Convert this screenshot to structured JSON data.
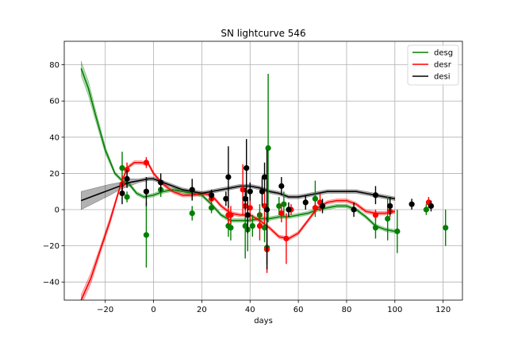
{
  "chart_data": {
    "type": "line",
    "title": "SN lightcurve 546",
    "xlabel": "days",
    "ylabel": "",
    "xlim": [
      -37,
      128
    ],
    "ylim": [
      -50,
      93
    ],
    "x_ticks": [
      -20,
      0,
      20,
      40,
      60,
      80,
      100,
      120
    ],
    "y_ticks": [
      -40,
      -20,
      0,
      20,
      40,
      60,
      80
    ],
    "grid": true,
    "legend_position": "top-right",
    "series": [
      {
        "name": "desg",
        "color": "#008000",
        "model": {
          "x": [
            -30,
            -27,
            -24,
            -20,
            -16,
            -13,
            -10,
            -7,
            -4,
            0,
            4,
            8,
            12,
            16,
            20,
            24,
            28,
            32,
            36,
            40,
            44,
            48,
            52,
            56,
            60,
            64,
            68,
            72,
            76,
            80,
            84,
            88,
            92,
            96,
            100
          ],
          "y": [
            78,
            67,
            52,
            33,
            20,
            16,
            14,
            9,
            7,
            8,
            10,
            11,
            10,
            9,
            8,
            3,
            -3,
            -6,
            -6,
            -6,
            -5,
            -5,
            -4,
            -4,
            -3,
            -2,
            0,
            1,
            2,
            2,
            0,
            -4,
            -9,
            -11,
            -12
          ],
          "band": [
            4,
            4,
            3,
            2,
            1,
            1,
            1,
            1,
            1,
            1,
            1,
            1,
            1,
            1,
            1,
            1,
            1,
            1,
            1,
            1,
            1,
            1,
            1,
            1,
            1,
            1,
            1,
            1,
            1,
            1,
            1,
            1,
            1,
            1,
            1
          ]
        },
        "points": [
          {
            "x": -13,
            "y": 23,
            "err": 9
          },
          {
            "x": -11,
            "y": 7,
            "err": 3
          },
          {
            "x": -3,
            "y": -14,
            "err": 18
          },
          {
            "x": 3,
            "y": 11,
            "err": 4
          },
          {
            "x": 16,
            "y": -2,
            "err": 4
          },
          {
            "x": 24,
            "y": 1,
            "err": 3
          },
          {
            "x": 31,
            "y": -9,
            "err": 6
          },
          {
            "x": 32,
            "y": -10,
            "err": 7
          },
          {
            "x": 38,
            "y": -9,
            "err": 18
          },
          {
            "x": 39,
            "y": -11,
            "err": 12
          },
          {
            "x": 41,
            "y": -9,
            "err": 6
          },
          {
            "x": 44,
            "y": -3,
            "err": 6
          },
          {
            "x": 46,
            "y": -10,
            "err": 8
          },
          {
            "x": 47,
            "y": -21,
            "err": 9
          },
          {
            "x": 47.5,
            "y": 34,
            "err": 41
          },
          {
            "x": 52,
            "y": 2,
            "err": 5
          },
          {
            "x": 54,
            "y": 3,
            "err": 7
          },
          {
            "x": 67,
            "y": 6,
            "err": 10
          },
          {
            "x": 92,
            "y": -10,
            "err": 6
          },
          {
            "x": 97,
            "y": -5,
            "err": 12
          },
          {
            "x": 101,
            "y": -12,
            "err": 12
          },
          {
            "x": 113,
            "y": 0,
            "err": 3
          },
          {
            "x": 121,
            "y": -10,
            "err": 10
          }
        ]
      },
      {
        "name": "desr",
        "color": "#ff0000",
        "model": {
          "x": [
            -30,
            -26,
            -22,
            -18,
            -14,
            -11,
            -8,
            -5,
            -2,
            0,
            4,
            8,
            12,
            16,
            20,
            24,
            28,
            32,
            36,
            40,
            44,
            48,
            52,
            56,
            60,
            64,
            68,
            72,
            76,
            80,
            84,
            88,
            92,
            96,
            100
          ],
          "y": [
            -50,
            -38,
            -22,
            -6,
            12,
            23,
            26,
            26,
            25,
            20,
            14,
            10,
            8,
            8,
            9,
            8,
            2,
            -2,
            -3,
            -3,
            -6,
            -10,
            -15,
            -16,
            -13,
            -6,
            1,
            4,
            5,
            5,
            3,
            -1,
            -2,
            -2,
            -1
          ],
          "band": [
            3,
            3,
            2,
            2,
            1,
            1,
            1,
            1,
            1,
            1,
            1,
            1,
            1,
            1,
            1,
            1,
            1,
            1,
            1,
            1,
            1,
            1,
            1,
            1,
            1,
            1,
            1,
            1,
            1,
            1,
            1,
            1,
            1,
            1,
            1
          ]
        },
        "points": [
          {
            "x": -13,
            "y": 14,
            "err": 5
          },
          {
            "x": -11,
            "y": 22,
            "err": 4
          },
          {
            "x": -3,
            "y": 26,
            "err": 3
          },
          {
            "x": 24,
            "y": 6,
            "err": 3
          },
          {
            "x": 31,
            "y": -3,
            "err": 5
          },
          {
            "x": 32,
            "y": -3,
            "err": 5
          },
          {
            "x": 37,
            "y": 11,
            "err": 14
          },
          {
            "x": 38,
            "y": 2,
            "err": 6
          },
          {
            "x": 40,
            "y": 1,
            "err": 7
          },
          {
            "x": 44,
            "y": -9,
            "err": 8
          },
          {
            "x": 46,
            "y": 2,
            "err": 10
          },
          {
            "x": 47,
            "y": -22,
            "err": 13
          },
          {
            "x": 53,
            "y": -2,
            "err": 5
          },
          {
            "x": 55,
            "y": -16,
            "err": 14
          },
          {
            "x": 57,
            "y": 0,
            "err": 3
          },
          {
            "x": 67,
            "y": 1,
            "err": 3
          },
          {
            "x": 69,
            "y": 4,
            "err": 5
          },
          {
            "x": 92,
            "y": -3,
            "err": 3
          },
          {
            "x": 98,
            "y": -1,
            "err": 3
          },
          {
            "x": 114,
            "y": 4,
            "err": 3
          }
        ]
      },
      {
        "name": "desi",
        "color": "#000000",
        "model": {
          "x": [
            -30,
            -24,
            -18,
            -14,
            -10,
            -6,
            -2,
            0,
            4,
            8,
            12,
            16,
            20,
            24,
            28,
            32,
            36,
            40,
            44,
            48,
            52,
            56,
            60,
            64,
            68,
            72,
            76,
            80,
            84,
            88,
            92,
            96,
            100
          ],
          "y": [
            5,
            8,
            11,
            13,
            15,
            16,
            17,
            17,
            15,
            13,
            11,
            10,
            9,
            10,
            11,
            12,
            13,
            13,
            12,
            10,
            9,
            7,
            7,
            8,
            9,
            10,
            10,
            10,
            10,
            9,
            8,
            7,
            6
          ],
          "band": [
            5,
            4,
            3,
            2,
            2,
            1,
            1,
            1,
            1,
            1,
            1,
            1,
            1,
            1,
            1,
            1,
            1,
            1,
            1,
            1,
            1,
            1,
            1,
            1,
            1,
            1,
            1,
            1,
            1,
            1,
            1,
            1,
            1
          ]
        },
        "points": [
          {
            "x": -13,
            "y": 9,
            "err": 6
          },
          {
            "x": -11,
            "y": 17,
            "err": 5
          },
          {
            "x": -3,
            "y": 10,
            "err": 8
          },
          {
            "x": 3,
            "y": 15,
            "err": 5
          },
          {
            "x": 16,
            "y": 11,
            "err": 6
          },
          {
            "x": 24,
            "y": 8,
            "err": 3
          },
          {
            "x": 30,
            "y": 6,
            "err": 4
          },
          {
            "x": 31,
            "y": 18,
            "err": 17
          },
          {
            "x": 38,
            "y": 6,
            "err": 6
          },
          {
            "x": 38.5,
            "y": 23,
            "err": 16
          },
          {
            "x": 39,
            "y": -3,
            "err": 10
          },
          {
            "x": 40,
            "y": 10,
            "err": 5
          },
          {
            "x": 45,
            "y": 10,
            "err": 8
          },
          {
            "x": 46,
            "y": 18,
            "err": 8
          },
          {
            "x": 47,
            "y": 0,
            "err": 33
          },
          {
            "x": 53,
            "y": 13,
            "err": 5
          },
          {
            "x": 56,
            "y": 0,
            "err": 4
          },
          {
            "x": 63,
            "y": 4,
            "err": 4
          },
          {
            "x": 70,
            "y": 2,
            "err": 4
          },
          {
            "x": 83,
            "y": 0,
            "err": 4
          },
          {
            "x": 92,
            "y": 8,
            "err": 5
          },
          {
            "x": 98,
            "y": 2,
            "err": 5
          },
          {
            "x": 107,
            "y": 3,
            "err": 3
          },
          {
            "x": 115,
            "y": 2,
            "err": 3
          }
        ]
      }
    ]
  }
}
